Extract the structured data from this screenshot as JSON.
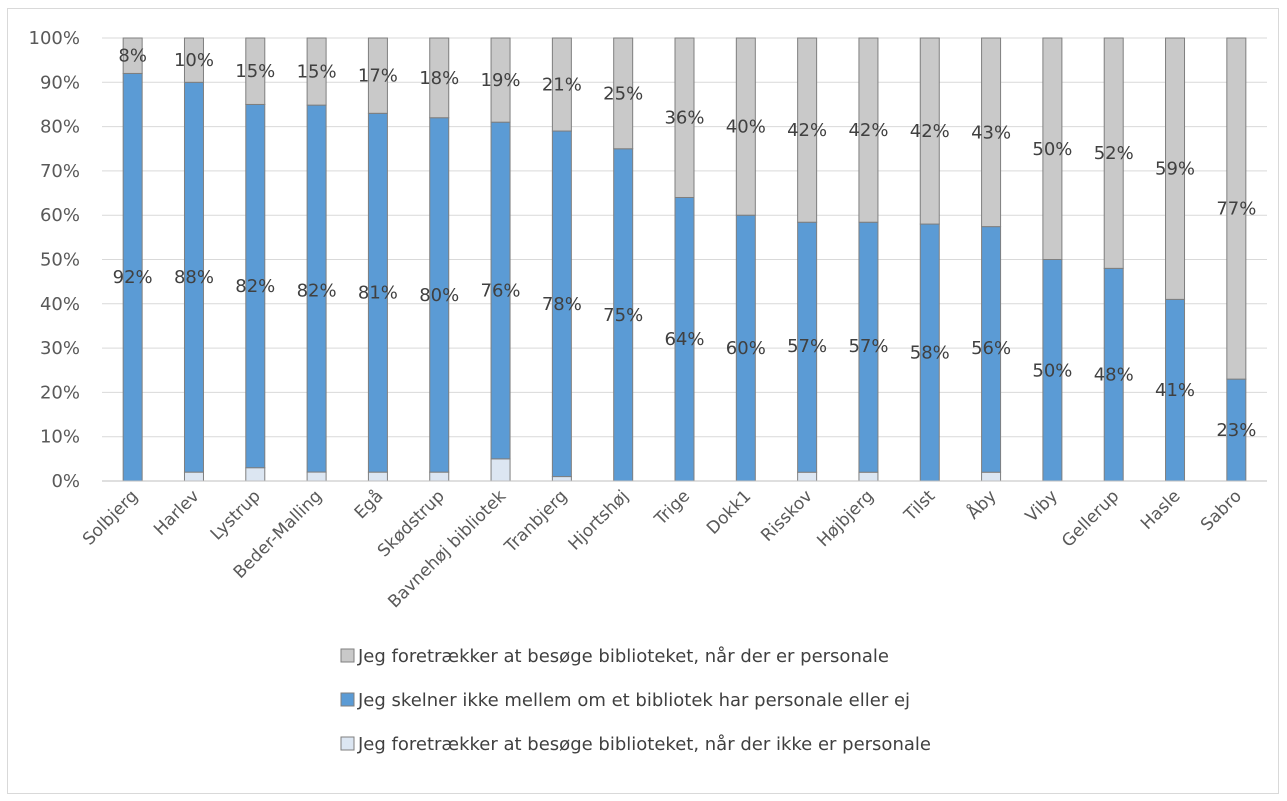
{
  "chart_data": {
    "type": "bar",
    "stacked": true,
    "categories": [
      "Solbjerg",
      "Harlev",
      "Lystrup",
      "Beder-Malling",
      "Egå",
      "Skødstrup",
      "Bavnehøj bibliotek",
      "Tranbjerg",
      "Hjortshøj",
      "Trige",
      "Dokk1",
      "Risskov",
      "Højbjerg",
      "Tilst",
      "Åby",
      "Viby",
      "Gellerup",
      "Hasle",
      "Sabro"
    ],
    "series": [
      {
        "name": "Jeg foretrækker at besøge biblioteket, når der ikke er personale",
        "color": "#dce6f2",
        "values": [
          0,
          2,
          3,
          2,
          2,
          2,
          5,
          1,
          0,
          0,
          0,
          2,
          2,
          0,
          2,
          0,
          0,
          0,
          0
        ]
      },
      {
        "name": "Jeg skelner ikke mellem om et bibliotek har personale eller ej",
        "color": "#5b9bd5",
        "values": [
          92,
          88,
          82,
          82,
          81,
          80,
          76,
          78,
          75,
          64,
          60,
          57,
          57,
          58,
          56,
          50,
          48,
          41,
          23
        ]
      },
      {
        "name": "Jeg foretrækker at besøge biblioteket, når der er personale",
        "color": "#c9c9c9",
        "values": [
          8,
          10,
          15,
          15,
          17,
          18,
          19,
          21,
          25,
          36,
          40,
          42,
          42,
          42,
          43,
          50,
          52,
          59,
          77
        ]
      }
    ],
    "data_labels": {
      "middle": [
        "92%",
        "88%",
        "82%",
        "82%",
        "81%",
        "80%",
        "76%",
        "78%",
        "75%",
        "64%",
        "60%",
        "57%",
        "57%",
        "58%",
        "56%",
        "50%",
        "48%",
        "41%",
        "23%"
      ],
      "top": [
        "8%",
        "10%",
        "15%",
        "15%",
        "17%",
        "18%",
        "19%",
        "21%",
        "25%",
        "36%",
        "40%",
        "42%",
        "42%",
        "42%",
        "43%",
        "50%",
        "52%",
        "59%",
        "77%"
      ]
    },
    "y_ticks": [
      "0%",
      "10%",
      "20%",
      "30%",
      "40%",
      "50%",
      "60%",
      "70%",
      "80%",
      "90%",
      "100%"
    ],
    "ylim": [
      0,
      100
    ],
    "grid": true,
    "legend_position": "bottom"
  }
}
